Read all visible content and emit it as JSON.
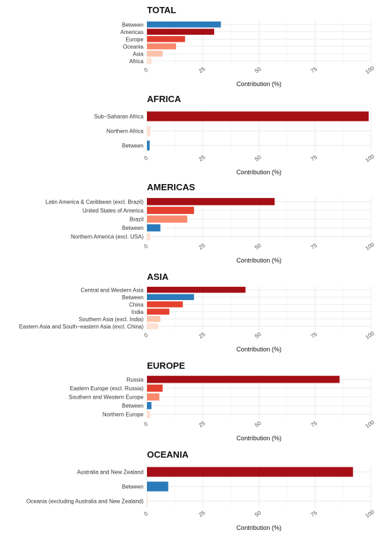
{
  "colors": {
    "between": "#2b7bba",
    "rank1": "#a50f15",
    "rank2": "#e5412f",
    "rank3": "#fa8a6e",
    "rank4": "#fcc3ab",
    "rank5": "#fee1d3"
  },
  "chart_data": [
    {
      "type": "bar",
      "orientation": "horizontal",
      "title": "TOTAL",
      "xlabel": "Contribution (%)",
      "xlim": [
        0,
        100
      ],
      "xticks": [
        "0",
        "25",
        "50",
        "75",
        "100"
      ],
      "categories": [
        "Between",
        "Americas",
        "Europe",
        "Oceania",
        "Asia",
        "Africa"
      ],
      "values": [
        33,
        30,
        17,
        13,
        7,
        2
      ],
      "color_keys": [
        "between",
        "rank1",
        "rank2",
        "rank3",
        "rank4",
        "rank5"
      ]
    },
    {
      "type": "bar",
      "orientation": "horizontal",
      "title": "AFRICA",
      "xlabel": "Contribution (%)",
      "xlim": [
        0,
        100
      ],
      "xticks": [
        "0",
        "25",
        "50",
        "75",
        "100"
      ],
      "categories": [
        "Sub−Saharan Africa",
        "Northern Africa",
        "Between"
      ],
      "values": [
        99,
        1.5,
        1.2
      ],
      "color_keys": [
        "rank1",
        "rank5",
        "between"
      ]
    },
    {
      "type": "bar",
      "orientation": "horizontal",
      "title": "AMERICAS",
      "xlabel": "Contribution (%)",
      "xlim": [
        0,
        100
      ],
      "xticks": [
        "0",
        "25",
        "50",
        "75",
        "100"
      ],
      "categories": [
        "Latin America & Caribbean (excl. Brazil)",
        "United States of America",
        "Brazil",
        "Between",
        "Northern America (excl. USA)"
      ],
      "values": [
        57,
        21,
        18,
        6,
        1.5
      ],
      "color_keys": [
        "rank1",
        "rank2",
        "rank3",
        "between",
        "rank5"
      ]
    },
    {
      "type": "bar",
      "orientation": "horizontal",
      "title": "ASIA",
      "xlabel": "Contribution (%)",
      "xlim": [
        0,
        100
      ],
      "xticks": [
        "0",
        "25",
        "50",
        "75",
        "100"
      ],
      "categories": [
        "Central and Western Asia",
        "Between",
        "China",
        "India",
        "Southern Asia (excl. India)",
        "Eastern Asia and South−eastern Asia (excl. China)"
      ],
      "values": [
        44,
        21,
        16,
        10,
        6,
        5
      ],
      "color_keys": [
        "rank1",
        "between",
        "rank2",
        "rank2",
        "rank4",
        "rank5"
      ]
    },
    {
      "type": "bar",
      "orientation": "horizontal",
      "title": "EUROPE",
      "xlabel": "Contribution (%)",
      "xlim": [
        0,
        100
      ],
      "xticks": [
        "0",
        "25",
        "50",
        "75",
        "100"
      ],
      "categories": [
        "Russia",
        "Eastern Europe (excl. Russia)",
        "Southern and Western Europe",
        "Between",
        "Northern Europe"
      ],
      "values": [
        86,
        7,
        5.5,
        2,
        1.5
      ],
      "color_keys": [
        "rank1",
        "rank2",
        "rank3",
        "between",
        "rank5"
      ]
    },
    {
      "type": "bar",
      "orientation": "horizontal",
      "title": "OCEANIA",
      "xlabel": "Contribution (%)",
      "xlim": [
        0,
        100
      ],
      "xticks": [
        "0",
        "25",
        "50",
        "75",
        "100"
      ],
      "categories": [
        "Australia and New Zealand",
        "Between",
        "Oceania (excluding Australia and New Zealand)"
      ],
      "values": [
        92,
        9.5,
        0.3
      ],
      "color_keys": [
        "rank1",
        "between",
        "rank5"
      ]
    }
  ]
}
